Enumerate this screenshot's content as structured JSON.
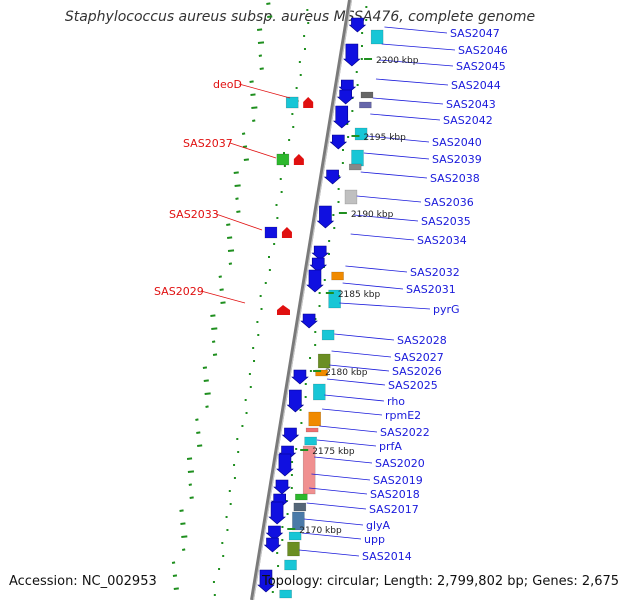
{
  "header": {
    "title": "Staphylococcus aureus subsp. aureus MSSA476, complete genome"
  },
  "footer": {
    "accession": "Accession: NC_002953",
    "topology": "Topology: circular; Length: 2,799,802 bp; Genes: 2,675"
  },
  "colors": {
    "forward_label": "#e01010",
    "reverse_label": "#1a1adb",
    "backbone": "#888888",
    "gc_dots": "#1f8f1f"
  },
  "kbp_ticks": [
    "2200 kbp",
    "2195 kbp",
    "2190 kbp",
    "2185 kbp",
    "2180 kbp",
    "2175 kbp",
    "2170 kbp"
  ],
  "reverse_labels": [
    "SAS2047",
    "SAS2046",
    "SAS2045",
    "SAS2044",
    "SAS2043",
    "SAS2042",
    "SAS2040",
    "SAS2039",
    "SAS2038",
    "SAS2036",
    "SAS2035",
    "SAS2034",
    "SAS2032",
    "SAS2031",
    "pyrG",
    "SAS2028",
    "SAS2027",
    "SAS2026",
    "SAS2025",
    "rho",
    "rpmE2",
    "SAS2022",
    "prfA",
    "SAS2020",
    "SAS2019",
    "SAS2018",
    "SAS2017",
    "glyA",
    "upp",
    "SAS2014"
  ],
  "forward_labels": [
    "deoD",
    "SAS2037",
    "SAS2033",
    "SAS2029"
  ]
}
